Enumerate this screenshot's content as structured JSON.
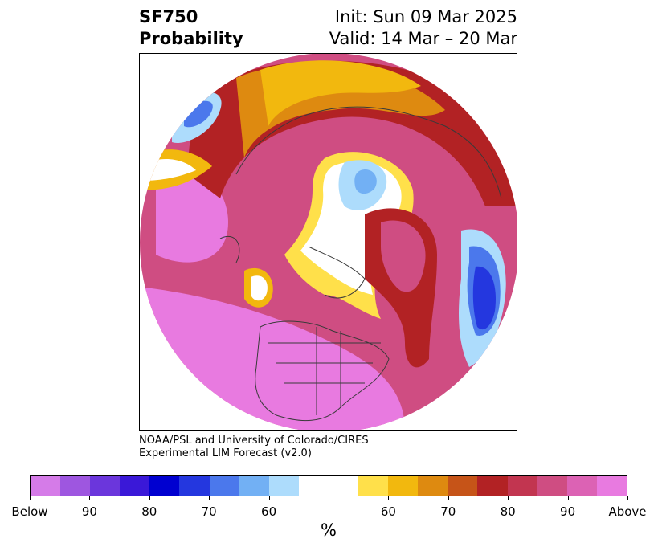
{
  "title": {
    "variable": "SF750",
    "kind": "Probability",
    "init": "Init: Sun 09 Mar 2025",
    "valid": "Valid: 14 Mar – 20 Mar"
  },
  "credit": {
    "line1": "NOAA/PSL and University of Colorado/CIRES",
    "line2": "Experimental LIM Forecast (v2.0)"
  },
  "colorbar": {
    "unit": "%",
    "segments": [
      {
        "color": "#d57be8",
        "width": 1
      },
      {
        "color": "#9e56e0",
        "width": 1
      },
      {
        "color": "#6b36dc",
        "width": 1
      },
      {
        "color": "#3a18d8",
        "width": 1
      },
      {
        "color": "#0000d0",
        "width": 1
      },
      {
        "color": "#2437df",
        "width": 1
      },
      {
        "color": "#4b78ec",
        "width": 1
      },
      {
        "color": "#72b0f4",
        "width": 1
      },
      {
        "color": "#addcfc",
        "width": 1
      },
      {
        "color": "#ffffff",
        "width": 2
      },
      {
        "color": "#ffe04a",
        "width": 1
      },
      {
        "color": "#f2b80e",
        "width": 1
      },
      {
        "color": "#de8a10",
        "width": 1
      },
      {
        "color": "#c65418",
        "width": 1
      },
      {
        "color": "#b22224",
        "width": 1
      },
      {
        "color": "#c23550",
        "width": 1
      },
      {
        "color": "#cf4d82",
        "width": 1
      },
      {
        "color": "#dc62b4",
        "width": 1
      },
      {
        "color": "#e87ae0",
        "width": 1
      }
    ],
    "tick_labels": [
      "Below",
      "90",
      "80",
      "70",
      "60",
      "60",
      "70",
      "80",
      "90",
      "Above"
    ]
  },
  "map_colors": {
    "land_outline": "#3a3a3a",
    "above_high": "#e87ae0",
    "above_mid": "#cf4d82",
    "red": "#b22224",
    "orange": "#de8a10",
    "gold": "#f2b80e",
    "yellow": "#ffe04a",
    "blue_light": "#addcfc",
    "blue_mid": "#72b0f4",
    "blue_strong": "#2437df"
  }
}
